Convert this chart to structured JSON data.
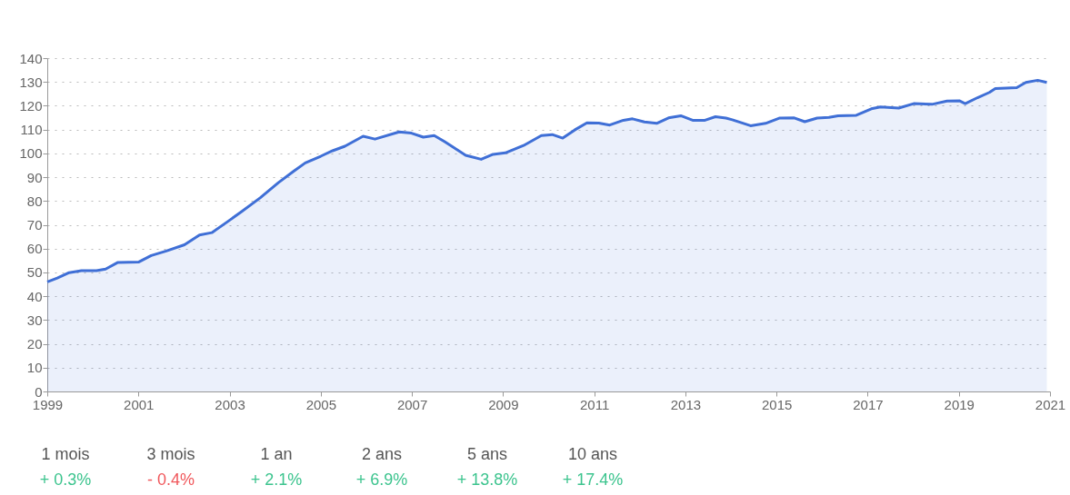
{
  "chart_data": {
    "type": "area",
    "xlim": [
      1999,
      2021
    ],
    "xticks": [
      1999,
      2001,
      2003,
      2005,
      2007,
      2009,
      2011,
      2013,
      2015,
      2017,
      2019,
      2021
    ],
    "ylim": [
      0,
      140
    ],
    "yticks": [
      0,
      10,
      20,
      30,
      40,
      50,
      60,
      70,
      80,
      90,
      100,
      110,
      120,
      130,
      140
    ],
    "grid": "y",
    "x": [
      1999.0,
      1999.22,
      1999.48,
      1999.75,
      2000.08,
      2000.28,
      2000.55,
      2001.01,
      2001.28,
      2001.61,
      2002.01,
      2002.34,
      2002.61,
      2002.94,
      2003.27,
      2003.67,
      2004.07,
      2004.4,
      2004.66,
      2005.0,
      2005.26,
      2005.53,
      2005.93,
      2006.19,
      2006.72,
      2006.99,
      2007.25,
      2007.49,
      2007.72,
      2008.18,
      2008.52,
      2008.78,
      2009.05,
      2009.45,
      2009.84,
      2010.08,
      2010.31,
      2010.57,
      2010.84,
      2011.1,
      2011.34,
      2011.64,
      2011.84,
      2012.1,
      2012.37,
      2012.63,
      2012.9,
      2013.16,
      2013.43,
      2013.66,
      2013.89,
      2014.03,
      2014.43,
      2014.76,
      2015.06,
      2015.39,
      2015.62,
      2015.89,
      2016.15,
      2016.35,
      2016.75,
      2017.08,
      2017.28,
      2017.68,
      2018.01,
      2018.41,
      2018.74,
      2019.01,
      2019.14,
      2019.41,
      2019.67,
      2019.8,
      2020.27,
      2020.47,
      2020.73,
      2020.93
    ],
    "series": [
      {
        "color": "#3f6fd6",
        "values": [
          46,
          47.6,
          49.9,
          50.7,
          50.7,
          51.4,
          54.2,
          54.4,
          57.1,
          59.0,
          61.6,
          65.7,
          66.7,
          71.1,
          75.6,
          81.3,
          87.7,
          92.4,
          96.0,
          98.8,
          101.1,
          103.0,
          107.2,
          106.0,
          109.0,
          108.5,
          106.8,
          107.5,
          104.9,
          99.2,
          97.5,
          99.6,
          100.2,
          103.3,
          107.5,
          107.9,
          106.4,
          109.8,
          112.8,
          112.7,
          111.9,
          113.9,
          114.5,
          113.2,
          112.6,
          114.9,
          115.8,
          113.9,
          113.9,
          115.4,
          114.8,
          114.1,
          111.6,
          112.6,
          114.8,
          114.9,
          113.3,
          114.8,
          115.1,
          115.8,
          116.0,
          118.7,
          119.5,
          119.0,
          120.9,
          120.6,
          122.0,
          122.1,
          120.9,
          123.4,
          125.6,
          127.2,
          127.6,
          129.8,
          130.7,
          129.8
        ]
      }
    ],
    "annotations": [
      "1 mois",
      "+ 0.3%",
      "3 mois",
      "- 0.4%",
      "1 an",
      "+ 2.1%",
      "2 ans",
      "+ 6.9%",
      "5 ans",
      "+ 13.8%",
      "10 ans",
      "+ 17.4%"
    ]
  }
}
